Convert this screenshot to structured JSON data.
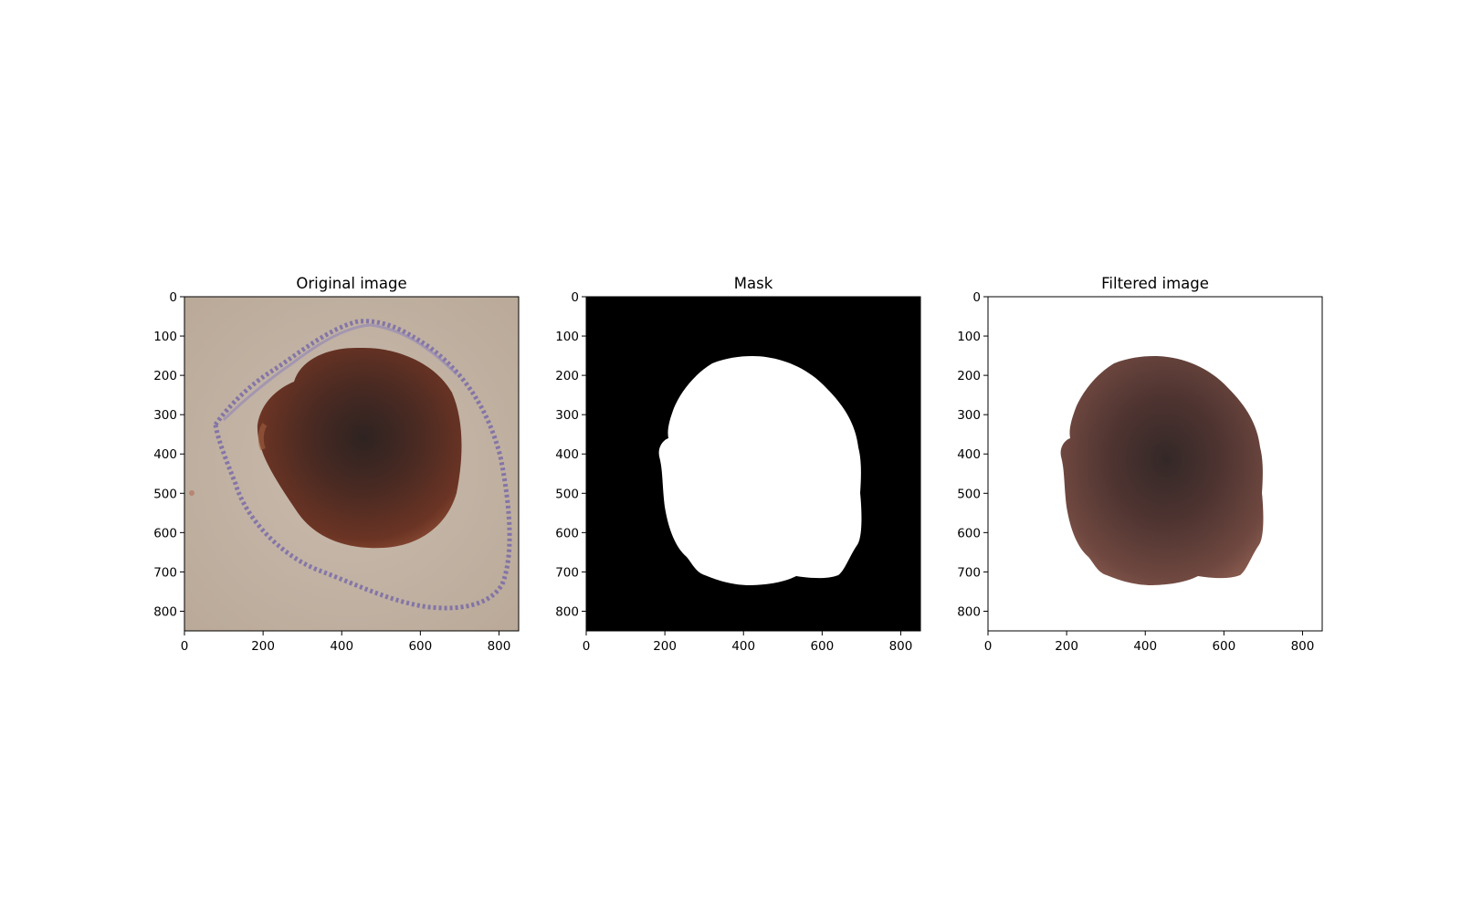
{
  "panels": [
    {
      "id": "original",
      "title": "Original image",
      "kind": "original",
      "x_ticks": [
        "0",
        "200",
        "400",
        "600",
        "800"
      ],
      "y_ticks": [
        "0",
        "100",
        "200",
        "300",
        "400",
        "500",
        "600",
        "700",
        "800"
      ],
      "background": "#c2b2a4",
      "lesion_color": "#6a3526",
      "lesion_center_color": "#3c2622",
      "marker_color": "#6f62a8"
    },
    {
      "id": "mask",
      "title": "Mask",
      "kind": "mask",
      "x_ticks": [
        "0",
        "200",
        "400",
        "600",
        "800"
      ],
      "y_ticks": [
        "0",
        "100",
        "200",
        "300",
        "400",
        "500",
        "600",
        "700",
        "800"
      ],
      "background": "#000000",
      "mask_color": "#ffffff"
    },
    {
      "id": "filtered",
      "title": "Filtered image",
      "kind": "filtered",
      "x_ticks": [
        "0",
        "200",
        "400",
        "600",
        "800"
      ],
      "y_ticks": [
        "0",
        "100",
        "200",
        "300",
        "400",
        "500",
        "600",
        "700",
        "800"
      ],
      "background": "#ffffff",
      "lesion_color": "#7d5147",
      "lesion_center_color": "#3b2b29"
    }
  ]
}
